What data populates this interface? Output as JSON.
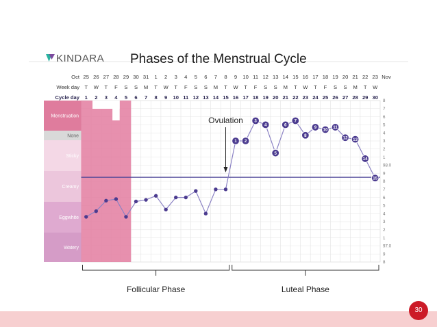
{
  "slide": {
    "logo_text": "KINDARA",
    "page_number": "30",
    "colors": {
      "badge": "#cc1b28",
      "footer_band": "#f7cfd0",
      "menstruation_band": "#e37ca0",
      "line": "#4a4296",
      "point": "#4b3b8f"
    }
  },
  "chart_data": {
    "type": "line",
    "title": "Phases of the Menstrual Cycle",
    "header_rows": {
      "labels": [
        "Oct",
        "Week day",
        "Cycle day"
      ],
      "dates": [
        "25",
        "26",
        "27",
        "28",
        "29",
        "30",
        "31",
        "1",
        "2",
        "3",
        "4",
        "5",
        "6",
        "7",
        "8",
        "9",
        "10",
        "11",
        "12",
        "13",
        "14",
        "15",
        "16",
        "17",
        "18",
        "19",
        "20",
        "21",
        "22",
        "23"
      ],
      "month_end_label": "Nov",
      "weekdays": [
        "T",
        "W",
        "T",
        "F",
        "S",
        "S",
        "M",
        "T",
        "W",
        "T",
        "F",
        "S",
        "S",
        "M",
        "T",
        "W",
        "T",
        "F",
        "S",
        "S",
        "M",
        "T",
        "W",
        "T",
        "F",
        "S",
        "S",
        "M",
        "T",
        "W"
      ],
      "cycle_days": [
        "1",
        "2",
        "3",
        "4",
        "5",
        "6",
        "7",
        "8",
        "9",
        "10",
        "11",
        "12",
        "13",
        "14",
        "15",
        "16",
        "17",
        "18",
        "19",
        "20",
        "21",
        "22",
        "23",
        "24",
        "25",
        "26",
        "27",
        "28",
        "29",
        "30"
      ]
    },
    "fluid_rows": [
      "Menstruation",
      "None",
      "Sticky",
      "Creamy",
      "Eggwhite",
      "Watery"
    ],
    "menstruation_days": [
      1,
      2,
      3,
      4,
      5
    ],
    "temperature_scale_labels": [
      "8",
      "7",
      "6",
      "5",
      "4",
      "3",
      "2",
      "1",
      "98.0",
      "9",
      "8",
      "7",
      "6",
      "5",
      "4",
      "3",
      "2",
      "1",
      "97.0",
      "9",
      "8"
    ],
    "temperatures": [
      97.36,
      97.43,
      97.56,
      97.58,
      97.36,
      97.55,
      97.57,
      97.62,
      97.45,
      97.6,
      97.6,
      97.68,
      97.4,
      97.7,
      97.7,
      98.3,
      98.3,
      98.55,
      98.5,
      98.15,
      98.5,
      98.55,
      98.37,
      98.47,
      98.44,
      98.47,
      98.34,
      98.32,
      98.08,
      97.84
    ],
    "point_labels": [
      {
        "day": 16,
        "label": "1"
      },
      {
        "day": 17,
        "label": "2"
      },
      {
        "day": 18,
        "label": "3"
      },
      {
        "day": 19,
        "label": "4"
      },
      {
        "day": 20,
        "label": "5"
      },
      {
        "day": 21,
        "label": "6"
      },
      {
        "day": 22,
        "label": "7"
      },
      {
        "day": 23,
        "label": "8"
      },
      {
        "day": 24,
        "label": "9"
      },
      {
        "day": 25,
        "label": "10"
      },
      {
        "day": 26,
        "label": "11"
      },
      {
        "day": 27,
        "label": "12"
      },
      {
        "day": 28,
        "label": "13"
      },
      {
        "day": 29,
        "label": "14"
      },
      {
        "day": 30,
        "label": "15"
      }
    ],
    "coverline": 97.85,
    "ovulation_day": 15,
    "annotations": {
      "ovulation": "Ovulation"
    },
    "phases": [
      {
        "label": "Follicular Phase",
        "start_day": 1,
        "end_day": 15
      },
      {
        "label": "Luteal Phase",
        "start_day": 16,
        "end_day": 30
      }
    ],
    "ylim": [
      96.8,
      98.8
    ],
    "grid": true
  }
}
